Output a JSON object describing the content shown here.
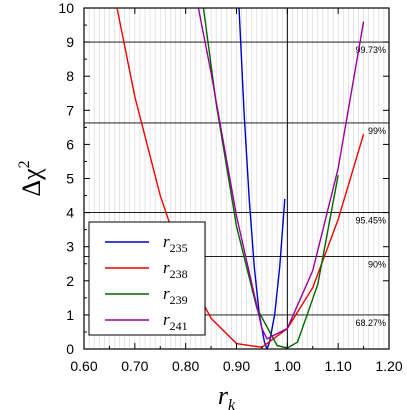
{
  "chart_data": {
    "type": "line",
    "xlabel": {
      "base": "r",
      "sub": "k"
    },
    "ylabel": {
      "base": "Δχ",
      "sup": "2"
    },
    "xlim": [
      0.6,
      1.2
    ],
    "ylim": [
      0,
      10
    ],
    "xticks": [
      0.6,
      0.7,
      0.8,
      0.9,
      1.0,
      1.1,
      1.2
    ],
    "xtick_labels": [
      "0.60",
      "0.70",
      "0.80",
      "0.90",
      "1.00",
      "1.10",
      "1.20"
    ],
    "yticks": [
      0,
      1,
      2,
      3,
      4,
      5,
      6,
      7,
      8,
      9,
      10
    ],
    "ytick_labels": [
      "0",
      "1",
      "2",
      "3",
      "4",
      "5",
      "6",
      "7",
      "8",
      "9",
      "10"
    ],
    "grid": true,
    "reference_line_x": 1.0,
    "confidence_levels": [
      {
        "y": 1.0,
        "label": "68.27%"
      },
      {
        "y": 2.71,
        "label": "90%"
      },
      {
        "y": 4.0,
        "label": "95.45%"
      },
      {
        "y": 6.63,
        "label": "99%"
      },
      {
        "y": 9.0,
        "label": "99.73%"
      }
    ],
    "legend_position": "lower-left",
    "series": [
      {
        "name": "r235",
        "base": "r",
        "sub": "235",
        "color": "#0000cc",
        "x": [
          0.905,
          0.915,
          0.925,
          0.935,
          0.945,
          0.955,
          0.96,
          0.965,
          0.975,
          0.985,
          0.995
        ],
        "y": [
          10.0,
          6.9,
          4.4,
          2.4,
          1.0,
          0.2,
          0.0,
          0.2,
          1.0,
          2.4,
          4.4
        ]
      },
      {
        "name": "r238",
        "base": "r",
        "sub": "238",
        "color": "#ee0000",
        "x": [
          0.665,
          0.7,
          0.75,
          0.8,
          0.85,
          0.9,
          0.95,
          1.0,
          1.05,
          1.1,
          1.15
        ],
        "y": [
          10.0,
          7.4,
          4.5,
          2.3,
          0.9,
          0.16,
          0.05,
          0.6,
          1.8,
          3.8,
          6.3
        ]
      },
      {
        "name": "r239",
        "base": "r",
        "sub": "239",
        "color": "#006600",
        "x": [
          0.835,
          0.86,
          0.9,
          0.94,
          0.98,
          1.0,
          1.02,
          1.06,
          1.1
        ],
        "y": [
          10.0,
          7.2,
          3.6,
          1.2,
          0.1,
          0.03,
          0.2,
          1.9,
          5.1
        ]
      },
      {
        "name": "r241",
        "base": "r",
        "sub": "241",
        "color": "#990099",
        "x": [
          0.825,
          0.85,
          0.9,
          0.95,
          0.96,
          1.0,
          1.05,
          1.1,
          1.15
        ],
        "y": [
          10.0,
          8.1,
          3.9,
          0.6,
          0.3,
          0.6,
          2.3,
          5.3,
          9.6
        ]
      }
    ]
  }
}
